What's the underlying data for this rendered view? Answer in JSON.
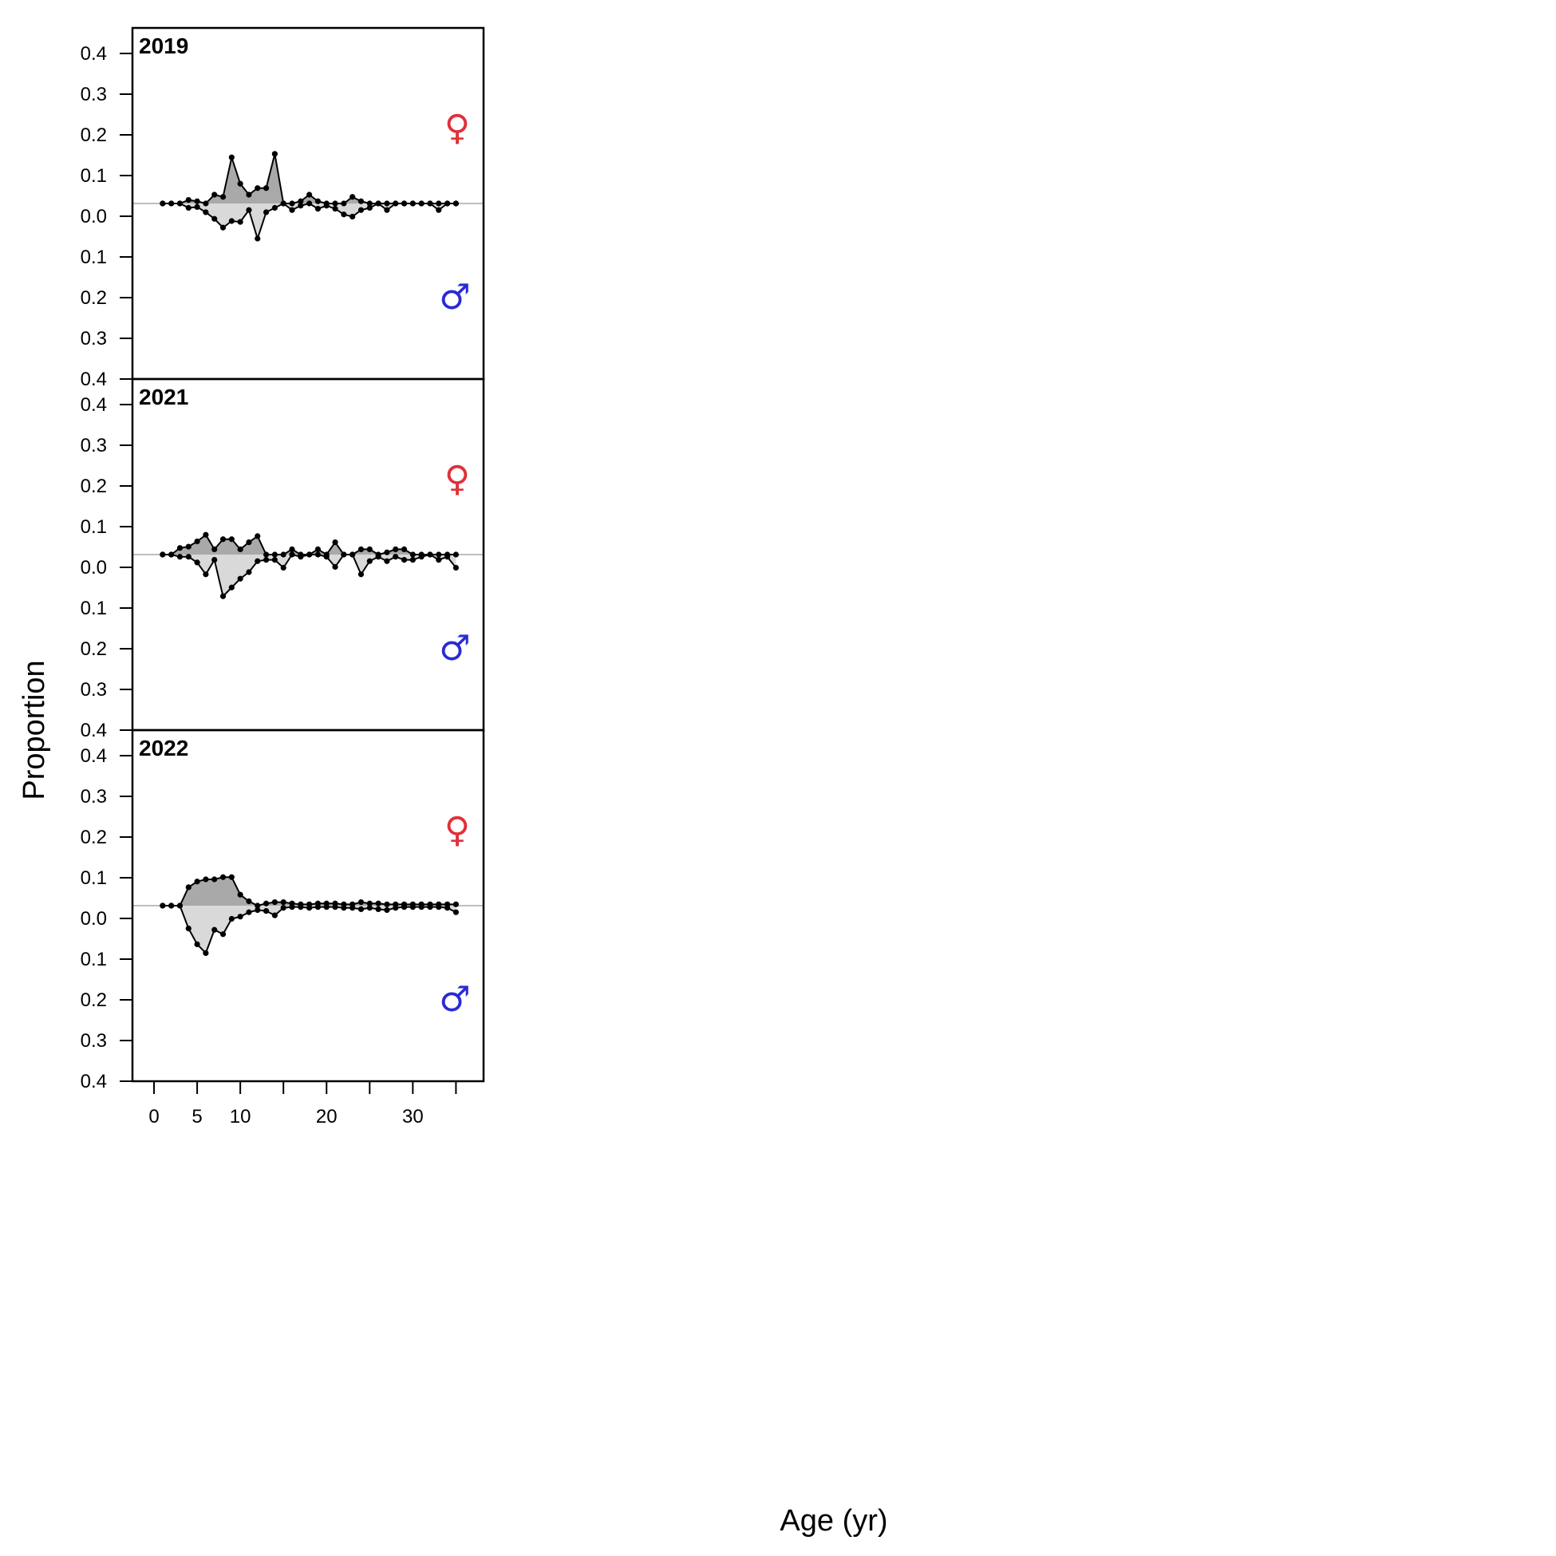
{
  "chart_data": {
    "type": "area",
    "ylabel": "Proportion",
    "xlabel": "Age (yr)",
    "x_ticks": [
      0,
      5,
      10,
      20,
      30
    ],
    "xlim": [
      -2.5,
      38.2
    ],
    "y_ticks": [
      "0.4",
      "0.3",
      "0.2",
      "0.1",
      "0.0",
      "0.1",
      "0.2",
      "0.3",
      "0.4"
    ],
    "ylim": [
      -0.4,
      0.4
    ],
    "female_symbol": "♀",
    "male_symbol": "♂",
    "colors": {
      "female_fill": "#a9a9a9",
      "male_fill": "#d9d9d9",
      "line": "#000000",
      "zero_line": "#bebebe",
      "female_symbol": "#e0303a",
      "male_symbol": "#2a2ad6"
    },
    "ages": [
      1,
      2,
      3,
      4,
      5,
      6,
      7,
      8,
      9,
      10,
      11,
      12,
      13,
      14,
      15,
      16,
      17,
      18,
      19,
      20,
      21,
      22,
      23,
      24,
      25,
      26,
      27,
      28,
      29,
      30,
      31,
      32,
      33,
      34,
      35
    ],
    "panels": [
      {
        "year": "2019",
        "female": [
          0,
          0,
          0,
          0.008,
          0.005,
          0,
          0.02,
          0.015,
          0.105,
          0.045,
          0.02,
          0.035,
          0.035,
          0.113,
          0,
          0,
          0.005,
          0.02,
          0.005,
          0,
          0,
          0,
          0.015,
          0.005,
          0,
          0,
          0,
          0,
          0,
          0,
          0,
          0,
          0,
          0,
          0
        ],
        "male": [
          0,
          0,
          0,
          -0.01,
          -0.008,
          -0.02,
          -0.035,
          -0.055,
          -0.04,
          -0.042,
          -0.015,
          -0.08,
          -0.02,
          -0.01,
          0,
          -0.015,
          -0.005,
          0,
          -0.012,
          -0.005,
          -0.012,
          -0.025,
          -0.03,
          -0.015,
          -0.01,
          0,
          -0.015,
          0,
          0,
          0,
          0,
          0,
          -0.015,
          0,
          0
        ]
      },
      {
        "year": "2021",
        "female": [
          0,
          0,
          0.015,
          0.018,
          0.03,
          0.045,
          0.012,
          0.035,
          0.035,
          0.012,
          0.028,
          0.042,
          0,
          0,
          0,
          0.012,
          0,
          0,
          0.012,
          0,
          0.028,
          0,
          0,
          0.012,
          0.012,
          0,
          0.005,
          0.012,
          0.012,
          0,
          0,
          0,
          0,
          0,
          0
        ],
        "male": [
          0,
          0,
          -0.005,
          -0.005,
          -0.018,
          -0.045,
          -0.012,
          -0.095,
          -0.075,
          -0.055,
          -0.04,
          -0.015,
          -0.012,
          -0.012,
          -0.03,
          0,
          -0.005,
          0,
          0,
          -0.005,
          -0.028,
          0,
          0,
          -0.045,
          -0.015,
          -0.005,
          -0.015,
          -0.005,
          -0.012,
          -0.012,
          -0.005,
          0,
          -0.012,
          -0.005,
          -0.03
        ]
      },
      {
        "year": "2022",
        "female": [
          0,
          0,
          0,
          0.042,
          0.055,
          0.06,
          0.06,
          0.065,
          0.065,
          0.025,
          0.01,
          0,
          0.005,
          0.008,
          0.008,
          0.005,
          0.003,
          0.003,
          0.005,
          0.005,
          0.005,
          0.003,
          0.003,
          0.008,
          0.005,
          0.005,
          0.003,
          0.003,
          0.003,
          0.003,
          0.003,
          0.003,
          0.003,
          0.003,
          0.003
        ],
        "male": [
          0,
          0,
          0,
          -0.052,
          -0.088,
          -0.108,
          -0.055,
          -0.065,
          -0.03,
          -0.025,
          -0.015,
          -0.01,
          -0.012,
          -0.022,
          -0.005,
          -0.003,
          -0.003,
          -0.005,
          -0.003,
          -0.003,
          -0.003,
          -0.005,
          -0.005,
          -0.008,
          -0.005,
          -0.008,
          -0.01,
          -0.005,
          -0.003,
          -0.003,
          -0.003,
          -0.003,
          -0.003,
          -0.005,
          -0.015
        ]
      }
    ]
  }
}
